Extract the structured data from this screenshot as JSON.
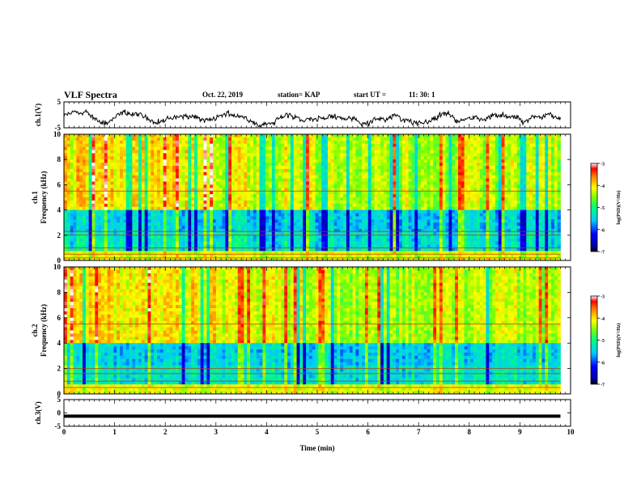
{
  "header": {
    "title": "VLF Spectra",
    "date": "Oct. 22, 2019",
    "station": "station= KAP",
    "start_label": "start  UT  =",
    "start_value": "11: 30: 1"
  },
  "chart_data": [
    {
      "type": "line",
      "panel": "ch1-waveform",
      "ylabel": "ch.1(V)",
      "ylim": [
        -5,
        5
      ],
      "yticks": [
        "5",
        "-5"
      ],
      "xlim": [
        0,
        10
      ],
      "x_extent_min": 9.8,
      "grid": false
    },
    {
      "type": "heatmap",
      "panel": "ch1-spectrogram",
      "ylabel_channel": "ch.1",
      "ylabel": "Frequency  (kHz)",
      "ylim": [
        0,
        10
      ],
      "yticks": [
        "0",
        "2",
        "4",
        "6",
        "8",
        "10"
      ],
      "xlim": [
        0,
        10
      ],
      "x_extent_min": 9.8,
      "colorbar": {
        "label": "log(PSD)(V²/Hz)",
        "range": [
          -7,
          -3
        ],
        "ticks": [
          "-3",
          "-4",
          "-5",
          "-6",
          "-7"
        ]
      },
      "horizontal_lines_khz": [
        5.5,
        2.3,
        2.0,
        1.0,
        0.5,
        0.2
      ]
    },
    {
      "type": "heatmap",
      "panel": "ch2-spectrogram",
      "ylabel_channel": "ch.2",
      "ylabel": "Frequency  (kHz)",
      "ylim": [
        0,
        10
      ],
      "yticks": [
        "0",
        "2",
        "4",
        "6",
        "8",
        "10"
      ],
      "xlim": [
        0,
        10
      ],
      "x_extent_min": 9.8,
      "colorbar": {
        "label": "log(PSD)(V²/Hz)",
        "range": [
          -7,
          -3
        ],
        "ticks": [
          "-3",
          "-4",
          "-5",
          "-6",
          "-7"
        ]
      },
      "horizontal_lines_khz": [
        5.5,
        2.0,
        1.6,
        1.0,
        0.5
      ]
    },
    {
      "type": "line",
      "panel": "ch3-waveform",
      "ylabel": "ch.3(V)",
      "ylim": [
        -5,
        5
      ],
      "yticks": [
        "5",
        "0",
        "-5"
      ],
      "xlim": [
        0,
        10
      ],
      "xticks": [
        "0",
        "1",
        "2",
        "3",
        "4",
        "5",
        "6",
        "7",
        "8",
        "9",
        "10"
      ],
      "xlabel": "Time  (min)",
      "x": [
        0,
        9.8
      ],
      "y": [
        -1.2,
        -1.2
      ]
    }
  ]
}
